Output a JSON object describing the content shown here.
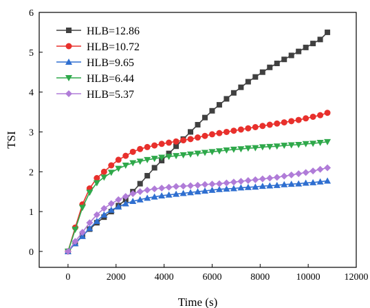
{
  "chart_data": {
    "type": "line",
    "title": "",
    "xlabel": "Time (s)",
    "ylabel": "TSI",
    "xlim": [
      -1200,
      12000
    ],
    "ylim": [
      -0.4,
      6
    ],
    "xticks": [
      0,
      2000,
      4000,
      6000,
      8000,
      10000,
      12000
    ],
    "yticks": [
      0,
      1,
      2,
      3,
      4,
      5,
      6
    ],
    "grid": false,
    "legend_position": "top-left",
    "x": [
      0,
      300,
      600,
      900,
      1200,
      1500,
      1800,
      2100,
      2400,
      2700,
      3000,
      3300,
      3600,
      3900,
      4200,
      4500,
      4800,
      5100,
      5400,
      5700,
      6000,
      6300,
      6600,
      6900,
      7200,
      7500,
      7800,
      8100,
      8400,
      8700,
      9000,
      9300,
      9600,
      9900,
      10200,
      10500,
      10800
    ],
    "series": [
      {
        "name": "HLB=12.86",
        "color": "#404040",
        "marker": "square",
        "values": [
          0,
          0.2,
          0.4,
          0.56,
          0.72,
          0.86,
          1.0,
          1.15,
          1.3,
          1.5,
          1.7,
          1.9,
          2.1,
          2.28,
          2.46,
          2.64,
          2.82,
          3.0,
          3.18,
          3.36,
          3.53,
          3.68,
          3.83,
          3.98,
          4.12,
          4.26,
          4.38,
          4.5,
          4.62,
          4.72,
          4.82,
          4.92,
          5.02,
          5.12,
          5.22,
          5.32,
          5.5
        ]
      },
      {
        "name": "HLB=10.72",
        "color": "#e8302c",
        "marker": "circle",
        "values": [
          0,
          0.6,
          1.18,
          1.58,
          1.84,
          2.0,
          2.16,
          2.3,
          2.4,
          2.5,
          2.57,
          2.62,
          2.66,
          2.7,
          2.73,
          2.76,
          2.79,
          2.82,
          2.86,
          2.9,
          2.94,
          2.97,
          3.0,
          3.03,
          3.06,
          3.09,
          3.12,
          3.15,
          3.18,
          3.21,
          3.24,
          3.27,
          3.3,
          3.34,
          3.38,
          3.42,
          3.48
        ]
      },
      {
        "name": "HLB=9.65",
        "color": "#2f6fd0",
        "marker": "triangle-up",
        "values": [
          0,
          0.2,
          0.38,
          0.58,
          0.76,
          0.92,
          1.04,
          1.12,
          1.2,
          1.26,
          1.3,
          1.34,
          1.37,
          1.4,
          1.42,
          1.44,
          1.46,
          1.48,
          1.5,
          1.52,
          1.54,
          1.56,
          1.57,
          1.58,
          1.6,
          1.61,
          1.62,
          1.64,
          1.65,
          1.66,
          1.68,
          1.69,
          1.7,
          1.72,
          1.73,
          1.75,
          1.77
        ]
      },
      {
        "name": "HLB=6.44",
        "color": "#2ea84a",
        "marker": "triangle-down",
        "values": [
          0,
          0.55,
          1.1,
          1.48,
          1.72,
          1.86,
          1.98,
          2.08,
          2.16,
          2.22,
          2.26,
          2.3,
          2.33,
          2.36,
          2.38,
          2.4,
          2.42,
          2.44,
          2.46,
          2.48,
          2.5,
          2.52,
          2.54,
          2.56,
          2.57,
          2.59,
          2.6,
          2.62,
          2.63,
          2.64,
          2.66,
          2.67,
          2.68,
          2.7,
          2.71,
          2.73,
          2.75
        ]
      },
      {
        "name": "HLB=5.37",
        "color": "#b07cd8",
        "marker": "diamond",
        "values": [
          0,
          0.25,
          0.48,
          0.72,
          0.92,
          1.08,
          1.2,
          1.3,
          1.38,
          1.45,
          1.5,
          1.54,
          1.57,
          1.59,
          1.61,
          1.63,
          1.64,
          1.65,
          1.66,
          1.68,
          1.69,
          1.7,
          1.72,
          1.74,
          1.76,
          1.78,
          1.8,
          1.82,
          1.84,
          1.86,
          1.89,
          1.92,
          1.95,
          1.98,
          2.02,
          2.06,
          2.1
        ]
      }
    ]
  }
}
